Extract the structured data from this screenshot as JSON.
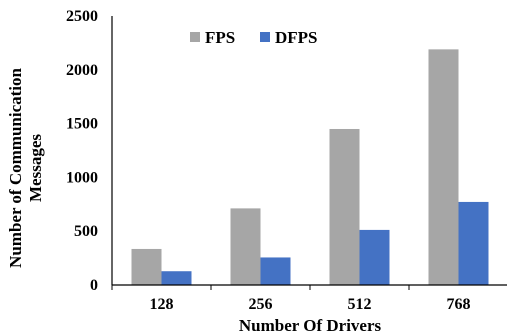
{
  "chart_data": {
    "type": "bar",
    "title": "",
    "categories": [
      "128",
      "256",
      "512",
      "768"
    ],
    "series": [
      {
        "name": "FPS",
        "values": [
          335,
          712,
          1450,
          2190
        ],
        "color": "#a6a6a6"
      },
      {
        "name": "DFPS",
        "values": [
          128,
          256,
          512,
          772
        ],
        "color": "#4472c4"
      }
    ],
    "xlabel": "Number Of Drivers",
    "ylabel_lines": [
      "Number of Communication",
      "Messages"
    ],
    "ylim": [
      0,
      2500
    ],
    "yticks": [
      0,
      500,
      1000,
      1500,
      2000,
      2500
    ],
    "grid": false,
    "legend_position": "top-left"
  }
}
